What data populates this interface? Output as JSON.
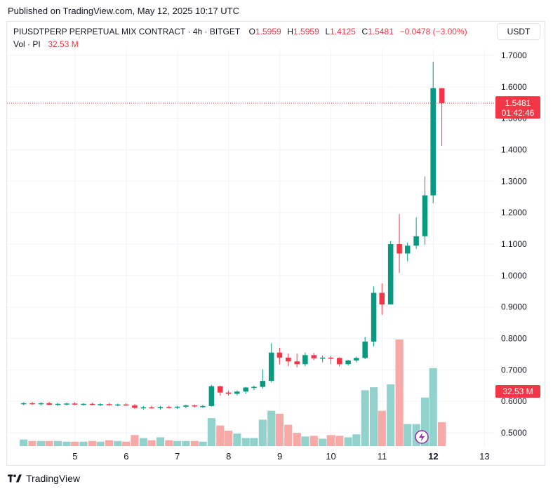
{
  "header": {
    "published": "Published on TradingView.com, May 12, 2025 10:17 UTC"
  },
  "legend": {
    "symbol": "PIUSDTPERP PERPETUAL MIX CONTRACT · 4h · BITGET",
    "o_label": "O",
    "o_value": "1.5959",
    "h_label": "H",
    "h_value": "1.5959",
    "l_label": "L",
    "l_value": "1.4125",
    "c_label": "C",
    "c_value": "1.5481",
    "change": "−0.0478 (−3.00%)",
    "vol_label": "Vol · PI",
    "vol_value": "32.53 M"
  },
  "currency_button": "USDT",
  "price_badge": {
    "price": "1.5481",
    "countdown": "01:42:46"
  },
  "volume_badge": "32.53 M",
  "footer": {
    "brand": "TradingView",
    "logo_icon": "tradingview-logo-icon"
  },
  "colors": {
    "up": "#089981",
    "down": "#f23645",
    "vol_up": "#92d2cc",
    "vol_down": "#f7a9a7"
  },
  "chart_data": {
    "type": "candlestick",
    "interval": "4h",
    "y_axis_ticks": [
      "0.5000",
      "0.6000",
      "0.7000",
      "0.8000",
      "0.9000",
      "1.0000",
      "1.1000",
      "1.2000",
      "1.3000",
      "1.4000",
      "1.5000",
      "1.6000",
      "1.7000"
    ],
    "ylim": [
      0.46,
      1.72
    ],
    "x_axis_ticks": [
      {
        "label": "5",
        "x": 5
      },
      {
        "label": "6",
        "x": 6
      },
      {
        "label": "7",
        "x": 7
      },
      {
        "label": "8",
        "x": 8
      },
      {
        "label": "9",
        "x": 9
      },
      {
        "label": "10",
        "x": 10
      },
      {
        "label": "11",
        "x": 11
      },
      {
        "label": "12",
        "x": 12
      },
      {
        "label": "13",
        "x": 13
      }
    ],
    "xlim": [
      4.33,
      13.79
    ],
    "last_price": 1.5481,
    "candles": [
      {
        "t": 4.33,
        "o": 0.592,
        "h": 0.597,
        "l": 0.588,
        "c": 0.594,
        "v": 9
      },
      {
        "t": 4.5,
        "o": 0.594,
        "h": 0.598,
        "l": 0.589,
        "c": 0.592,
        "v": 7
      },
      {
        "t": 4.67,
        "o": 0.592,
        "h": 0.597,
        "l": 0.587,
        "c": 0.594,
        "v": 7
      },
      {
        "t": 4.83,
        "o": 0.594,
        "h": 0.598,
        "l": 0.588,
        "c": 0.589,
        "v": 7
      },
      {
        "t": 5.0,
        "o": 0.589,
        "h": 0.595,
        "l": 0.585,
        "c": 0.592,
        "v": 7
      },
      {
        "t": 5.17,
        "o": 0.592,
        "h": 0.596,
        "l": 0.587,
        "c": 0.593,
        "v": 6
      },
      {
        "t": 5.33,
        "o": 0.593,
        "h": 0.597,
        "l": 0.588,
        "c": 0.59,
        "v": 6
      },
      {
        "t": 5.5,
        "o": 0.59,
        "h": 0.594,
        "l": 0.586,
        "c": 0.592,
        "v": 6
      },
      {
        "t": 5.67,
        "o": 0.592,
        "h": 0.596,
        "l": 0.587,
        "c": 0.589,
        "v": 7
      },
      {
        "t": 5.83,
        "o": 0.589,
        "h": 0.594,
        "l": 0.585,
        "c": 0.591,
        "v": 6
      },
      {
        "t": 6.0,
        "o": 0.591,
        "h": 0.595,
        "l": 0.586,
        "c": 0.588,
        "v": 8
      },
      {
        "t": 6.17,
        "o": 0.588,
        "h": 0.593,
        "l": 0.584,
        "c": 0.59,
        "v": 7
      },
      {
        "t": 6.33,
        "o": 0.59,
        "h": 0.594,
        "l": 0.585,
        "c": 0.587,
        "v": 6
      },
      {
        "t": 6.5,
        "o": 0.587,
        "h": 0.592,
        "l": 0.576,
        "c": 0.579,
        "v": 15
      },
      {
        "t": 6.67,
        "o": 0.579,
        "h": 0.585,
        "l": 0.574,
        "c": 0.581,
        "v": 11
      },
      {
        "t": 6.83,
        "o": 0.581,
        "h": 0.586,
        "l": 0.576,
        "c": 0.579,
        "v": 8
      },
      {
        "t": 7.0,
        "o": 0.579,
        "h": 0.585,
        "l": 0.574,
        "c": 0.582,
        "v": 12
      },
      {
        "t": 7.17,
        "o": 0.582,
        "h": 0.586,
        "l": 0.577,
        "c": 0.58,
        "v": 8
      },
      {
        "t": 7.33,
        "o": 0.58,
        "h": 0.585,
        "l": 0.576,
        "c": 0.583,
        "v": 7
      },
      {
        "t": 7.5,
        "o": 0.583,
        "h": 0.589,
        "l": 0.578,
        "c": 0.587,
        "v": 7
      },
      {
        "t": 7.67,
        "o": 0.587,
        "h": 0.59,
        "l": 0.58,
        "c": 0.584,
        "v": 7
      },
      {
        "t": 7.83,
        "o": 0.584,
        "h": 0.589,
        "l": 0.579,
        "c": 0.585,
        "v": 6
      },
      {
        "t": 8.0,
        "o": 0.585,
        "h": 0.652,
        "l": 0.583,
        "c": 0.648,
        "v": 38
      },
      {
        "t": 8.17,
        "o": 0.648,
        "h": 0.65,
        "l": 0.618,
        "c": 0.628,
        "v": 28
      },
      {
        "t": 8.33,
        "o": 0.628,
        "h": 0.634,
        "l": 0.618,
        "c": 0.624,
        "v": 21
      },
      {
        "t": 8.5,
        "o": 0.624,
        "h": 0.635,
        "l": 0.619,
        "c": 0.631,
        "v": 17
      },
      {
        "t": 8.67,
        "o": 0.631,
        "h": 0.646,
        "l": 0.624,
        "c": 0.644,
        "v": 11
      },
      {
        "t": 8.83,
        "o": 0.644,
        "h": 0.65,
        "l": 0.636,
        "c": 0.646,
        "v": 11
      },
      {
        "t": 9.0,
        "o": 0.646,
        "h": 0.702,
        "l": 0.64,
        "c": 0.665,
        "v": 36
      },
      {
        "t": 9.17,
        "o": 0.665,
        "h": 0.785,
        "l": 0.66,
        "c": 0.755,
        "v": 48
      },
      {
        "t": 9.33,
        "o": 0.755,
        "h": 0.77,
        "l": 0.718,
        "c": 0.739,
        "v": 44
      },
      {
        "t": 9.5,
        "o": 0.739,
        "h": 0.752,
        "l": 0.712,
        "c": 0.727,
        "v": 29
      },
      {
        "t": 9.67,
        "o": 0.727,
        "h": 0.752,
        "l": 0.708,
        "c": 0.718,
        "v": 18
      },
      {
        "t": 9.83,
        "o": 0.718,
        "h": 0.755,
        "l": 0.712,
        "c": 0.747,
        "v": 13
      },
      {
        "t": 10.0,
        "o": 0.747,
        "h": 0.754,
        "l": 0.731,
        "c": 0.737,
        "v": 14
      },
      {
        "t": 10.17,
        "o": 0.737,
        "h": 0.746,
        "l": 0.724,
        "c": 0.739,
        "v": 10
      },
      {
        "t": 10.33,
        "o": 0.739,
        "h": 0.744,
        "l": 0.718,
        "c": 0.738,
        "v": 15
      },
      {
        "t": 10.5,
        "o": 0.738,
        "h": 0.74,
        "l": 0.711,
        "c": 0.718,
        "v": 14
      },
      {
        "t": 10.67,
        "o": 0.718,
        "h": 0.732,
        "l": 0.714,
        "c": 0.73,
        "v": 12
      },
      {
        "t": 10.83,
        "o": 0.73,
        "h": 0.742,
        "l": 0.724,
        "c": 0.738,
        "v": 16
      },
      {
        "t": 11.0,
        "o": 0.738,
        "h": 0.805,
        "l": 0.734,
        "c": 0.79,
        "v": 76
      },
      {
        "t": 11.17,
        "o": 0.79,
        "h": 0.965,
        "l": 0.775,
        "c": 0.945,
        "v": 80
      },
      {
        "t": 11.33,
        "o": 0.945,
        "h": 0.975,
        "l": 0.875,
        "c": 0.908,
        "v": 48
      },
      {
        "t": 11.5,
        "o": 0.908,
        "h": 1.11,
        "l": 0.908,
        "c": 1.1,
        "v": 84
      },
      {
        "t": 11.67,
        "o": 1.1,
        "h": 1.195,
        "l": 1.008,
        "c": 1.07,
        "v": 145
      },
      {
        "t": 11.83,
        "o": 1.07,
        "h": 1.105,
        "l": 1.045,
        "c": 1.095,
        "v": 30
      },
      {
        "t": 12.0,
        "o": 1.095,
        "h": 1.185,
        "l": 1.085,
        "c": 1.125,
        "v": 30
      },
      {
        "t": 12.17,
        "o": 1.125,
        "h": 1.315,
        "l": 1.098,
        "c": 1.255,
        "v": 66
      },
      {
        "t": 12.33,
        "o": 1.255,
        "h": 1.68,
        "l": 1.23,
        "c": 1.596,
        "v": 106
      },
      {
        "t": 12.5,
        "o": 1.596,
        "h": 1.596,
        "l": 1.4125,
        "c": 1.5481,
        "v": 32.53
      }
    ]
  }
}
